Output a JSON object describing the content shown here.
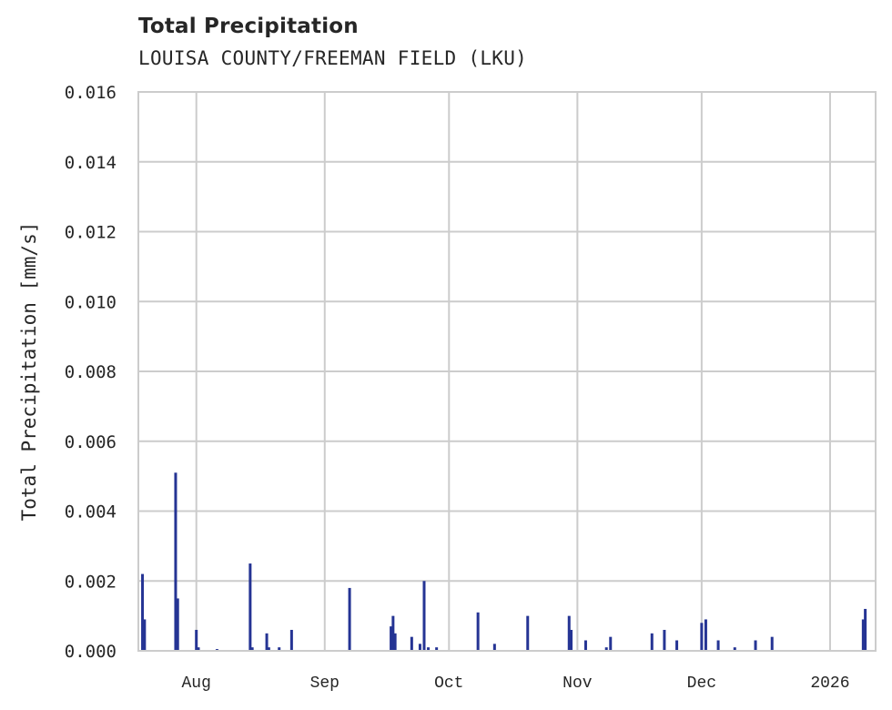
{
  "header": {
    "title": "Total Precipitation",
    "subtitle": "LOUISA COUNTY/FREEMAN FIELD (LKU)"
  },
  "colors": {
    "series": "#253494",
    "grid": "#cccccc",
    "text": "#262626",
    "background": "#ffffff"
  },
  "chart_data": {
    "type": "bar",
    "title": "Total Precipitation",
    "subtitle": "LOUISA COUNTY/FREEMAN FIELD (LKU)",
    "xlabel": "",
    "ylabel": "Total Precipitation [mm/s]",
    "ylim": [
      0,
      0.016
    ],
    "yticks": [
      "0.000",
      "0.002",
      "0.004",
      "0.006",
      "0.008",
      "0.010",
      "0.012",
      "0.014",
      "0.016"
    ],
    "xticks": [
      "Aug",
      "Sep",
      "Oct",
      "Nov",
      "Dec",
      "2026"
    ],
    "xlim": [
      "2025-07-18",
      "2026-01-12"
    ],
    "grid": true,
    "legend": null,
    "series": [
      {
        "name": "Total Precipitation",
        "x": [
          "2025-07-19",
          "2025-07-19T12",
          "2025-07-27",
          "2025-07-27T12",
          "2025-08-01",
          "2025-08-01T12",
          "2025-08-06",
          "2025-08-14",
          "2025-08-14T12",
          "2025-08-18",
          "2025-08-18T12",
          "2025-08-21",
          "2025-08-24",
          "2025-09-07",
          "2025-09-17",
          "2025-09-17T12",
          "2025-09-18",
          "2025-09-22",
          "2025-09-24",
          "2025-09-25",
          "2025-09-26",
          "2025-09-28",
          "2025-10-08",
          "2025-10-12",
          "2025-10-20",
          "2025-10-30",
          "2025-10-30T12",
          "2025-11-03",
          "2025-11-08",
          "2025-11-09",
          "2025-11-19",
          "2025-11-22",
          "2025-11-25",
          "2025-12-01",
          "2025-12-02",
          "2025-12-05",
          "2025-12-09",
          "2025-12-14",
          "2025-12-18",
          "2026-01-09",
          "2026-01-09T12"
        ],
        "values": [
          0.0022,
          0.0009,
          0.0051,
          0.0015,
          0.0006,
          0.0001,
          5e-05,
          0.0025,
          0.0001,
          0.0005,
          0.0001,
          0.0001,
          0.0006,
          0.0018,
          0.0007,
          0.001,
          0.0005,
          0.0004,
          0.0002,
          0.002,
          0.0001,
          0.0001,
          0.0011,
          0.0002,
          0.001,
          0.001,
          0.0006,
          0.0003,
          0.0001,
          0.0004,
          0.0005,
          0.0006,
          0.0003,
          0.0008,
          0.0009,
          0.0003,
          0.0001,
          0.0003,
          0.0004,
          0.0009,
          0.0012
        ]
      }
    ]
  }
}
